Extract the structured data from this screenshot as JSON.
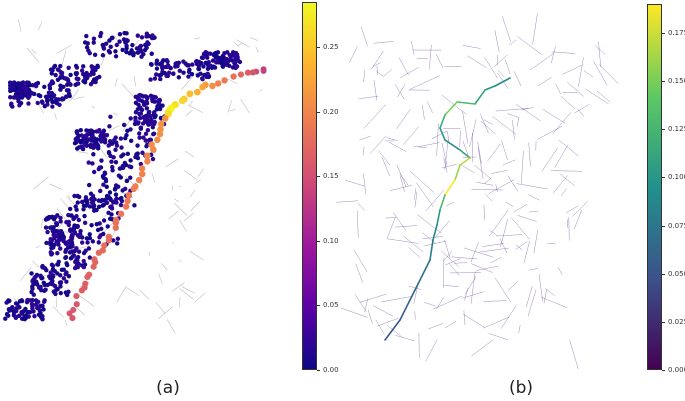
{
  "panel_a": {
    "caption": "(a)",
    "colormap": "plasma",
    "colorbar": {
      "min": 0.0,
      "max": 0.285,
      "ticks": [
        "0.00",
        "0.05",
        "0.10",
        "0.15",
        "0.20",
        "0.25"
      ],
      "tick_values": [
        0.0,
        0.05,
        0.1,
        0.15,
        0.2,
        0.25
      ]
    }
  },
  "panel_b": {
    "caption": "(b)",
    "colormap": "viridis",
    "colorbar": {
      "min": 0.0,
      "max": 0.19,
      "ticks": [
        "0.000",
        "0.025",
        "0.050",
        "0.075",
        "0.100",
        "0.125",
        "0.150",
        "0.175"
      ],
      "tick_values": [
        0.0,
        0.025,
        0.05,
        0.075,
        0.1,
        0.125,
        0.15,
        0.175
      ]
    }
  },
  "colors": {
    "plasma": [
      "#0d0887",
      "#5c01a6",
      "#9c179e",
      "#cc4778",
      "#ed7953",
      "#fdb42f",
      "#f0f921"
    ],
    "viridis": [
      "#440154",
      "#3b528b",
      "#21918c",
      "#5ec962",
      "#fde725"
    ],
    "edge_gray": "#bdbdbd",
    "edge_purple": "#5b3a8e"
  }
}
